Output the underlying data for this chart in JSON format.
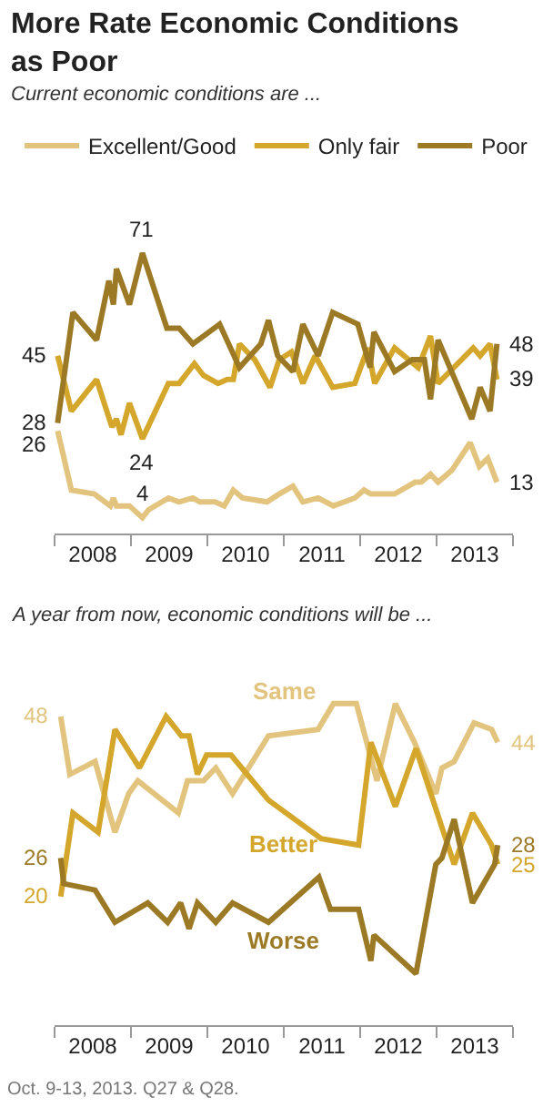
{
  "chart_data": [
    {
      "type": "line",
      "title": "More Rate Economic Conditions as Poor",
      "subtitle": "Current economic conditions are ...",
      "legend": "top",
      "tick_labels": "x",
      "xlim": [
        2008,
        2014
      ],
      "xticks": [
        {
          "value": 2008,
          "label": null
        },
        {
          "value": 2008.5,
          "label": "2008"
        },
        {
          "value": 2009,
          "label": null
        },
        {
          "value": 2009.5,
          "label": "2009"
        },
        {
          "value": 2010,
          "label": null
        },
        {
          "value": 2010.5,
          "label": "2010"
        },
        {
          "value": 2011,
          "label": null
        },
        {
          "value": 2011.5,
          "label": "2011"
        },
        {
          "value": 2012,
          "label": null
        },
        {
          "value": 2012.5,
          "label": "2012"
        },
        {
          "value": 2013,
          "label": null
        },
        {
          "value": 2013.5,
          "label": "2013"
        },
        {
          "value": 2014,
          "label": null
        }
      ],
      "series": [
        {
          "name": "Excellent/Good",
          "color": "#e3c47e",
          "x": [
            2008.04,
            2008.22,
            2008.52,
            2008.73,
            2008.77,
            2008.81,
            2008.98,
            2009.15,
            2009.23,
            2009.49,
            2009.63,
            2009.81,
            2009.9,
            2010.1,
            2010.22,
            2010.34,
            2010.46,
            2010.78,
            2010.94,
            2011.12,
            2011.25,
            2011.45,
            2011.65,
            2011.93,
            2012.05,
            2012.14,
            2012.45,
            2012.72,
            2012.8,
            2012.92,
            2013.02,
            2013.2,
            2013.44,
            2013.56,
            2013.67,
            2013.79
          ],
          "values": [
            26,
            11,
            10,
            7,
            9,
            7,
            7,
            4,
            6,
            9,
            8,
            9,
            8,
            8,
            7,
            11,
            9,
            8,
            10,
            12,
            8,
            9,
            7,
            9,
            11,
            10,
            10,
            13,
            13,
            15,
            13,
            16,
            23,
            17,
            19,
            13
          ],
          "value_labels": [
            "26",
            null,
            null,
            null,
            null,
            null,
            null,
            "4",
            null,
            null,
            null,
            null,
            null,
            null,
            null,
            null,
            null,
            null,
            null,
            null,
            null,
            null,
            null,
            null,
            null,
            null,
            null,
            null,
            null,
            null,
            null,
            null,
            null,
            null,
            null,
            "13"
          ]
        },
        {
          "name": "Only fair",
          "color": "#d4a72c",
          "x": [
            2008.04,
            2008.22,
            2008.55,
            2008.75,
            2008.81,
            2008.87,
            2008.98,
            2009.15,
            2009.49,
            2009.63,
            2009.83,
            2009.95,
            2010.14,
            2010.26,
            2010.34,
            2010.42,
            2010.62,
            2010.82,
            2010.94,
            2011.1,
            2011.25,
            2011.41,
            2011.64,
            2011.93,
            2012.1,
            2012.19,
            2012.45,
            2012.76,
            2012.92,
            2013.02,
            2013.48,
            2013.57,
            2013.7,
            2013.79
          ],
          "values": [
            45,
            31,
            39,
            27,
            29,
            25,
            33,
            24,
            38,
            38,
            43,
            40,
            38,
            39,
            39,
            48,
            44,
            37,
            44,
            46,
            38,
            45,
            37,
            38,
            47,
            38,
            47,
            42,
            50,
            38,
            47,
            45,
            48,
            39
          ],
          "value_labels": [
            "45",
            null,
            null,
            null,
            null,
            null,
            null,
            "24",
            null,
            null,
            null,
            null,
            null,
            null,
            null,
            null,
            null,
            null,
            null,
            null,
            null,
            null,
            null,
            null,
            null,
            null,
            null,
            null,
            null,
            null,
            null,
            null,
            null,
            "39"
          ]
        },
        {
          "name": "Poor",
          "color": "#9c7a25",
          "x": [
            2008.04,
            2008.24,
            2008.55,
            2008.71,
            2008.77,
            2008.81,
            2008.98,
            2009.15,
            2009.47,
            2009.63,
            2009.81,
            2009.95,
            2010.16,
            2010.42,
            2010.7,
            2010.8,
            2010.92,
            2011.12,
            2011.25,
            2011.45,
            2011.64,
            2011.97,
            2012.13,
            2012.18,
            2012.45,
            2012.68,
            2012.84,
            2012.92,
            2013.02,
            2013.46,
            2013.57,
            2013.7,
            2013.79
          ],
          "values": [
            28,
            56,
            49,
            64,
            58,
            67,
            58,
            71,
            52,
            52,
            48,
            50,
            53,
            42,
            48,
            54,
            45,
            41,
            53,
            45,
            56,
            53,
            42,
            51,
            41,
            44,
            44,
            34,
            49,
            29,
            37,
            31,
            48
          ],
          "value_labels": [
            "28",
            null,
            null,
            null,
            null,
            null,
            null,
            "71",
            null,
            null,
            null,
            null,
            null,
            null,
            null,
            null,
            null,
            null,
            null,
            null,
            null,
            null,
            null,
            null,
            null,
            null,
            null,
            null,
            null,
            null,
            null,
            null,
            "48"
          ]
        }
      ]
    },
    {
      "type": "line",
      "subtitle": "A year from now, economic conditions will be ...",
      "tick_labels": "x",
      "xlim": [
        2008,
        2014
      ],
      "xticks": [
        {
          "value": 2008,
          "label": null
        },
        {
          "value": 2008.5,
          "label": "2008"
        },
        {
          "value": 2009,
          "label": null
        },
        {
          "value": 2009.5,
          "label": "2009"
        },
        {
          "value": 2010,
          "label": null
        },
        {
          "value": 2010.5,
          "label": "2010"
        },
        {
          "value": 2011,
          "label": null
        },
        {
          "value": 2011.5,
          "label": "2011"
        },
        {
          "value": 2012,
          "label": null
        },
        {
          "value": 2012.5,
          "label": "2012"
        },
        {
          "value": 2013,
          "label": null
        },
        {
          "value": 2013.5,
          "label": "2013"
        },
        {
          "value": 2014,
          "label": null
        }
      ],
      "annotations": [
        "Oct. 9-13, 2013. Q27 & Q28."
      ],
      "series": [
        {
          "name": "Same",
          "color": "#e3c47e",
          "x": [
            2008.08,
            2008.2,
            2008.53,
            2008.79,
            2008.97,
            2009.09,
            2009.62,
            2009.74,
            2009.95,
            2010.11,
            2010.33,
            2010.8,
            2011.45,
            2011.65,
            2011.95,
            2012.22,
            2012.46,
            2012.71,
            2012.99,
            2013.07,
            2013.23,
            2013.49,
            2013.72,
            2013.8
          ],
          "values": [
            48,
            39,
            41,
            30,
            36,
            38,
            33,
            38,
            38,
            40,
            36,
            45,
            46,
            50,
            50,
            38,
            50,
            44,
            36,
            40,
            41,
            47,
            46,
            44
          ],
          "value_labels": [
            "48",
            null,
            null,
            null,
            null,
            null,
            null,
            null,
            null,
            null,
            null,
            null,
            null,
            null,
            null,
            null,
            null,
            null,
            null,
            null,
            null,
            null,
            null,
            "44"
          ]
        },
        {
          "name": "Better",
          "color": "#d4a72c",
          "x": [
            2008.08,
            2008.24,
            2008.57,
            2008.79,
            2009.11,
            2009.46,
            2009.66,
            2009.76,
            2009.87,
            2009.99,
            2010.31,
            2010.8,
            2011.49,
            2011.98,
            2012.14,
            2012.46,
            2012.73,
            2013.23,
            2013.47,
            2013.72,
            2013.8
          ],
          "values": [
            20,
            33,
            30,
            46,
            40,
            48,
            45,
            45,
            39,
            42,
            42,
            35,
            29,
            28,
            44,
            34,
            43,
            25,
            33,
            28,
            25
          ],
          "value_labels": [
            "20",
            null,
            null,
            null,
            null,
            null,
            null,
            null,
            null,
            null,
            null,
            null,
            null,
            null,
            null,
            null,
            null,
            null,
            null,
            null,
            "25"
          ]
        },
        {
          "name": "Worse",
          "color": "#9c7a25",
          "x": [
            2008.08,
            2008.12,
            2008.53,
            2008.79,
            2009.22,
            2009.48,
            2009.65,
            2009.76,
            2009.87,
            2010.11,
            2010.33,
            2010.8,
            2011.46,
            2011.61,
            2011.98,
            2012.14,
            2012.18,
            2012.73,
            2012.99,
            2013.07,
            2013.23,
            2013.47,
            2013.76,
            2013.8
          ],
          "values": [
            26,
            22,
            21,
            16,
            19,
            16,
            19,
            15,
            19,
            16,
            19,
            16,
            23,
            18,
            18,
            10,
            14,
            8,
            25,
            26,
            32,
            19,
            25,
            28
          ],
          "value_labels": [
            "26",
            null,
            null,
            null,
            null,
            null,
            null,
            null,
            null,
            null,
            null,
            null,
            null,
            null,
            null,
            null,
            null,
            null,
            null,
            null,
            null,
            null,
            null,
            "28"
          ]
        }
      ]
    }
  ]
}
